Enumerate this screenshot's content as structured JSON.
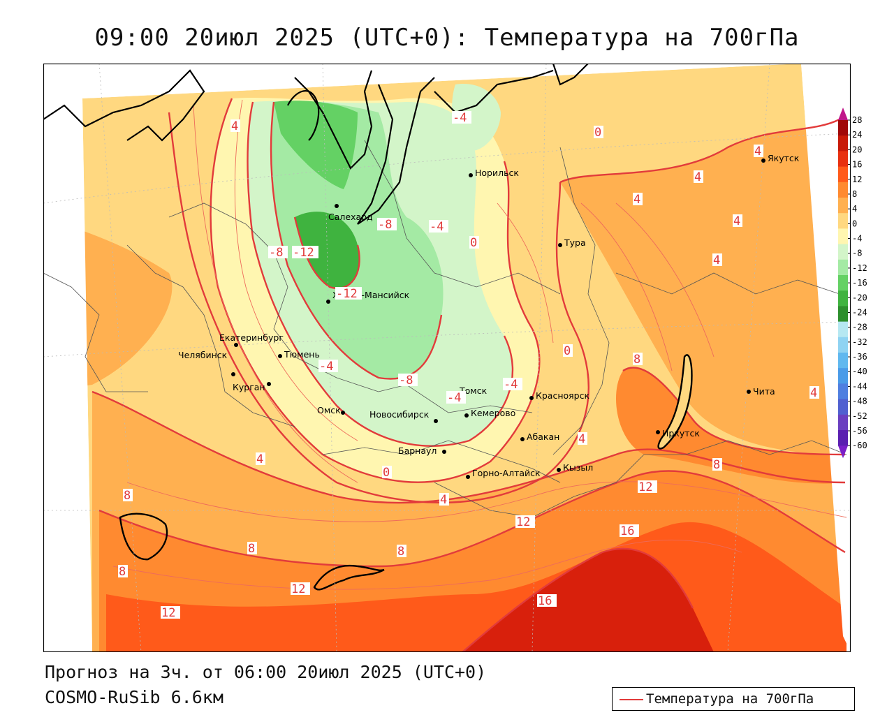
{
  "header": {
    "title": "09:00 20июл 2025 (UTC+0): Температура на 700гПа"
  },
  "footer": {
    "forecast": "Прогноз на 3ч. от 06:00 20июл 2025 (UTC+0)",
    "model": "COSMO-RuSib 6.6км",
    "legend_label": "Температура на 700гПа"
  },
  "colors": {
    "contour": "#e23b3b",
    "scale": [
      "#5a1fb0",
      "#6a3fc0",
      "#5060d0",
      "#4f7fe0",
      "#4a9be8",
      "#60b8ef",
      "#8fd3f2",
      "#b6e8f2",
      "#2d8f2d",
      "#3fb33f",
      "#64d164",
      "#a4eaa4",
      "#d3f5c9",
      "#fff6b0",
      "#ffd880",
      "#ffb050",
      "#ff8a30",
      "#ff5a1a",
      "#e83010",
      "#c81a08",
      "#a00808"
    ]
  },
  "colorbar": {
    "labels": [
      "28",
      "24",
      "20",
      "16",
      "12",
      "8",
      "4",
      "0",
      "-4",
      "-8",
      "-12",
      "-16",
      "-20",
      "-24",
      "-28",
      "-32",
      "-36",
      "-40",
      "-44",
      "-48",
      "-52",
      "-56",
      "-60"
    ]
  },
  "cities": [
    {
      "name": "Якутск"
    },
    {
      "name": "Норильск"
    },
    {
      "name": "Салехард"
    },
    {
      "name": "Тура"
    },
    {
      "name": "Ханты-Мансийск"
    },
    {
      "name": "Екатеринбург"
    },
    {
      "name": "Тюмень"
    },
    {
      "name": "Челябинск"
    },
    {
      "name": "Курган"
    },
    {
      "name": "Омск"
    },
    {
      "name": "Новосибирск"
    },
    {
      "name": "Томск"
    },
    {
      "name": "Кемерово"
    },
    {
      "name": "Красноярск"
    },
    {
      "name": "Абакан"
    },
    {
      "name": "Барнаул"
    },
    {
      "name": "Горно-Алтайск"
    },
    {
      "name": "Кызыл"
    },
    {
      "name": "Иркутск"
    },
    {
      "name": "Чита"
    }
  ],
  "isotherm_labels": [
    "4",
    "-4",
    "0",
    "4",
    "4",
    "4",
    "4",
    "-8",
    "-12",
    "-8",
    "-4",
    "0",
    "-12",
    "4",
    "0",
    "8",
    "-4",
    "-8",
    "-4",
    "-4",
    "4",
    "4",
    "0",
    "4",
    "8",
    "12",
    "8",
    "12",
    "16",
    "8",
    "8",
    "12",
    "12",
    "16",
    "4",
    "8"
  ]
}
